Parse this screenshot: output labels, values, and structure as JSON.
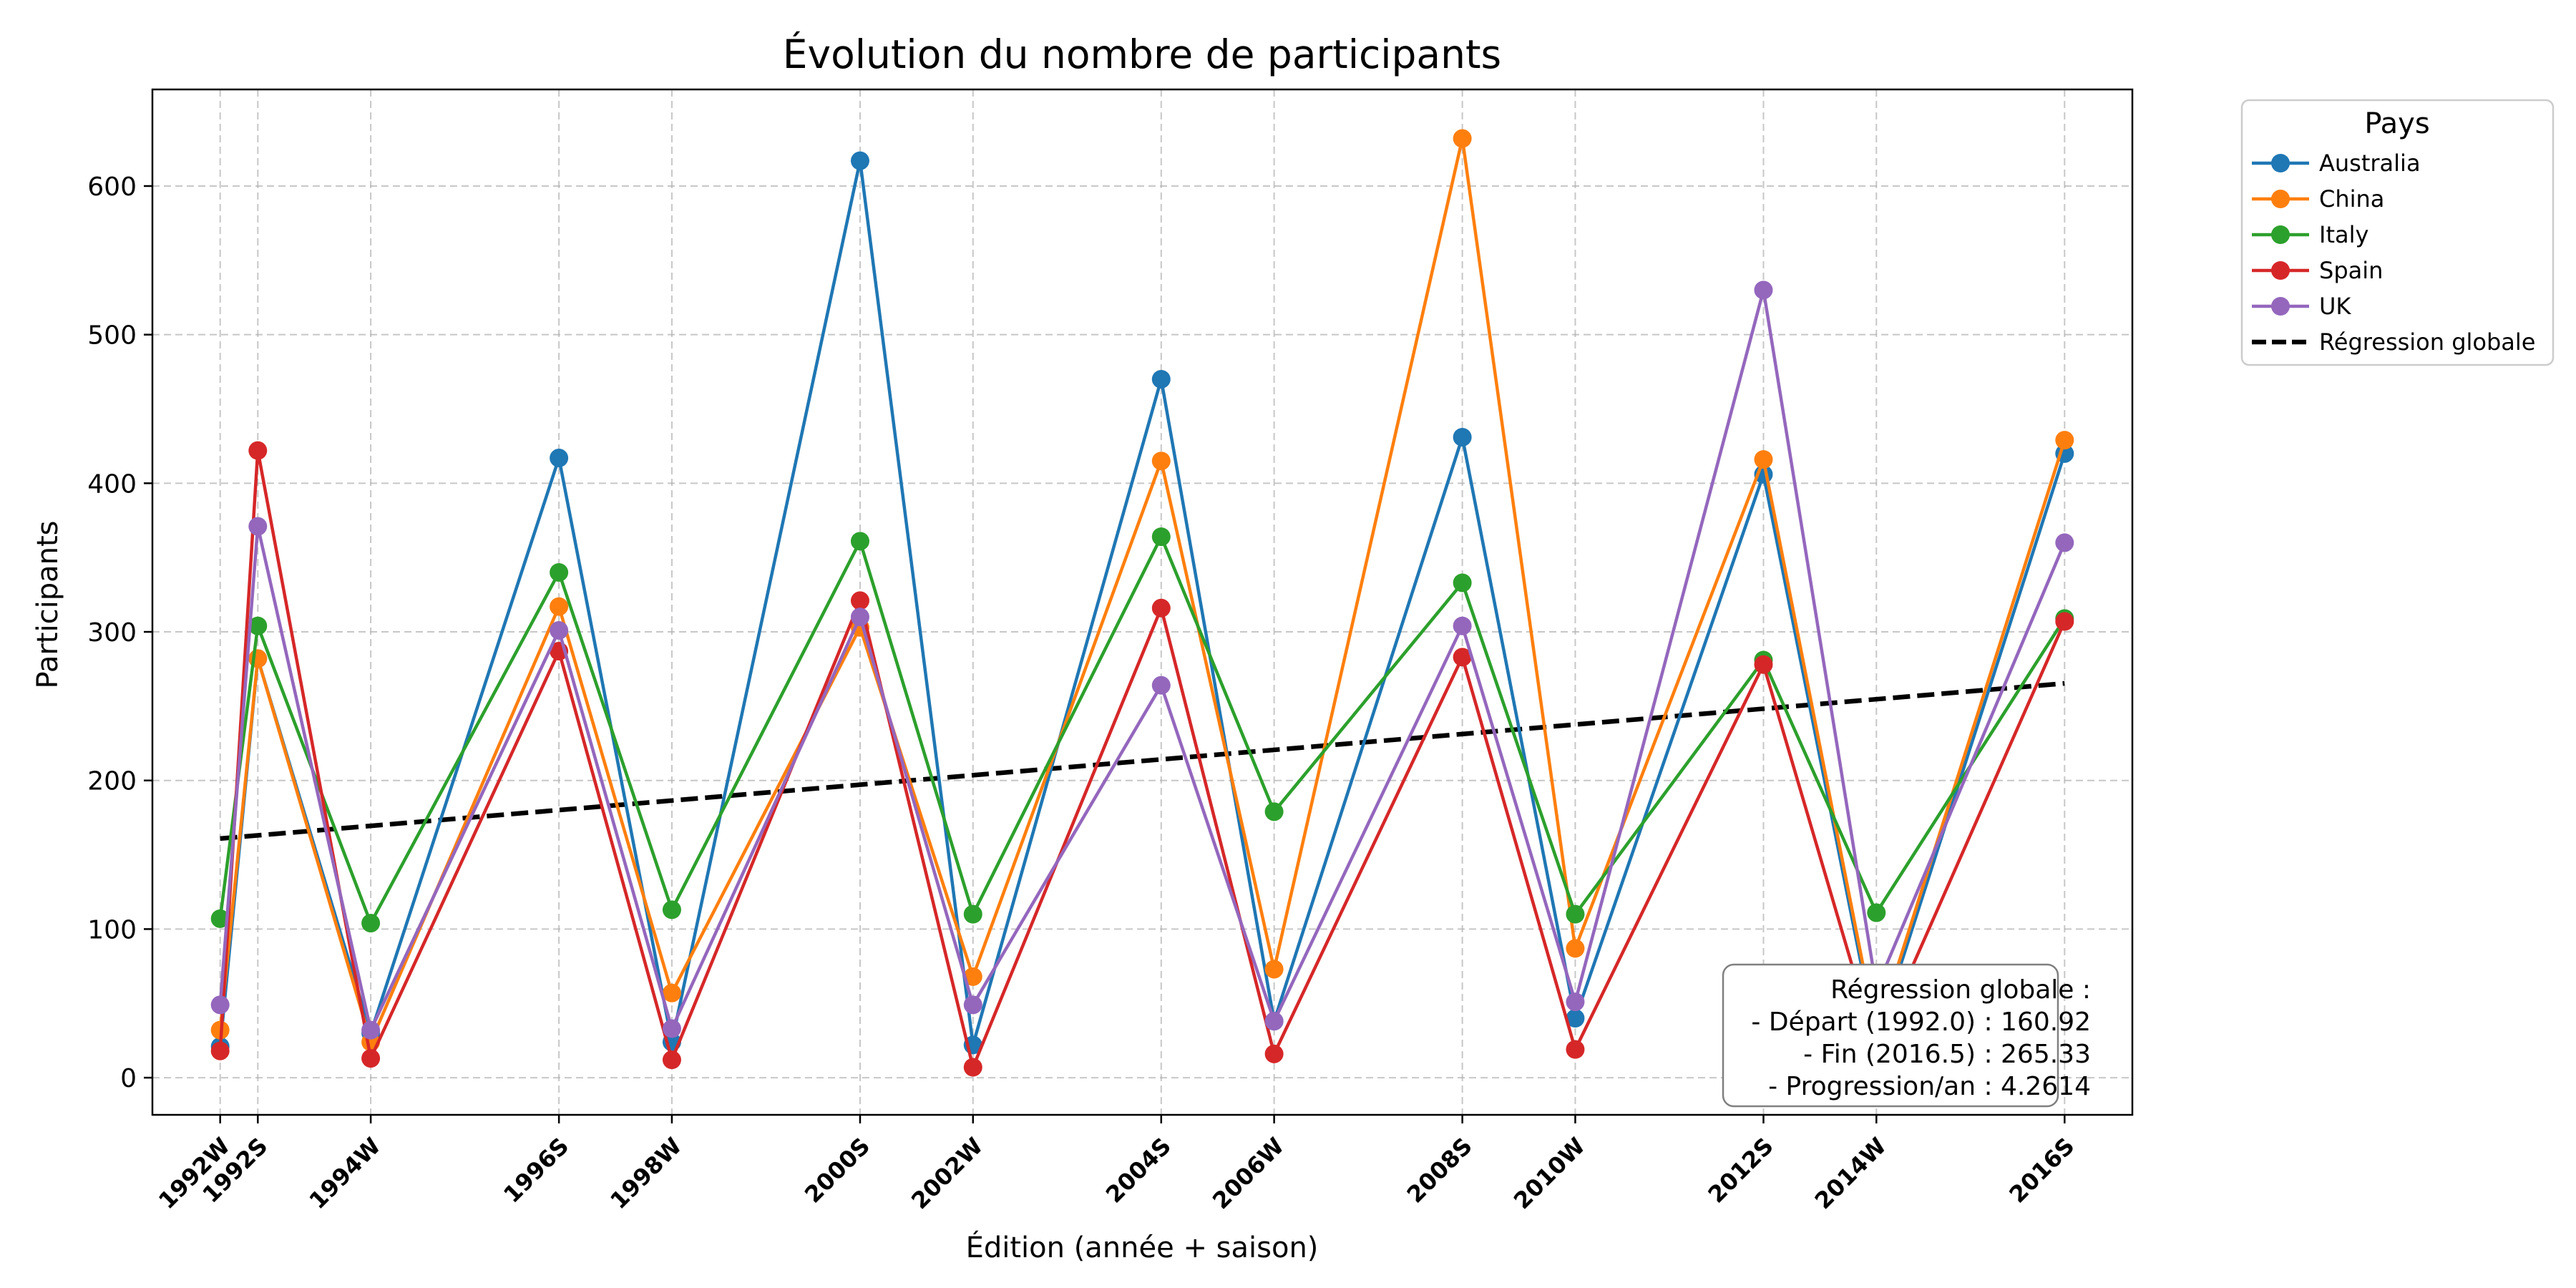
{
  "chart_data": {
    "type": "line",
    "title": "Évolution du nombre de participants",
    "xlabel": "Édition (année + saison)",
    "ylabel": "Participants",
    "ylim": [
      -25,
      665
    ],
    "xlim": [
      1991.1,
      2017.4
    ],
    "yticks": [
      0,
      100,
      200,
      300,
      400,
      500,
      600
    ],
    "grid": true,
    "legend_title": "Pays",
    "legend_placement": "outside-upper-right",
    "categories": [
      "1992W",
      "1992S",
      "1994W",
      "1996S",
      "1998W",
      "2000S",
      "2002W",
      "2004S",
      "2006W",
      "2008S",
      "2010W",
      "2012S",
      "2014W",
      "2016S"
    ],
    "x": [
      1992.0,
      1992.5,
      1994.0,
      1996.5,
      1998.0,
      2000.5,
      2002.0,
      2004.5,
      2006.0,
      2008.5,
      2010.0,
      2012.5,
      2014.0,
      2016.5
    ],
    "series": [
      {
        "name": "Australia",
        "color": "#1f77b4",
        "values": [
          21,
          282,
          30,
          417,
          24,
          617,
          22,
          470,
          38,
          431,
          40,
          406,
          25,
          420
        ]
      },
      {
        "name": "China",
        "color": "#ff7f0e",
        "values": [
          32,
          282,
          24,
          317,
          57,
          303,
          68,
          415,
          73,
          632,
          87,
          416,
          30,
          429
        ]
      },
      {
        "name": "Italy",
        "color": "#2ca02c",
        "values": [
          107,
          304,
          104,
          340,
          113,
          361,
          110,
          364,
          179,
          333,
          110,
          281,
          111,
          309
        ]
      },
      {
        "name": "Spain",
        "color": "#d62728",
        "values": [
          18,
          422,
          13,
          287,
          12,
          321,
          7,
          316,
          16,
          283,
          19,
          278,
          20,
          307
        ]
      },
      {
        "name": "UK",
        "color": "#9467bd",
        "values": [
          49,
          371,
          32,
          301,
          33,
          310,
          49,
          264,
          38,
          304,
          51,
          530,
          60,
          360
        ]
      }
    ],
    "regression": {
      "name": "Régression globale",
      "color": "#000000",
      "x": [
        1992.0,
        2016.5
      ],
      "y": [
        160.92,
        265.33
      ]
    },
    "annotation": {
      "lines": [
        "Régression globale :",
        "- Départ (1992.0) : 160.92",
        "- Fin (2016.5) : 265.33",
        "- Progression/an : 4.2614"
      ]
    }
  }
}
